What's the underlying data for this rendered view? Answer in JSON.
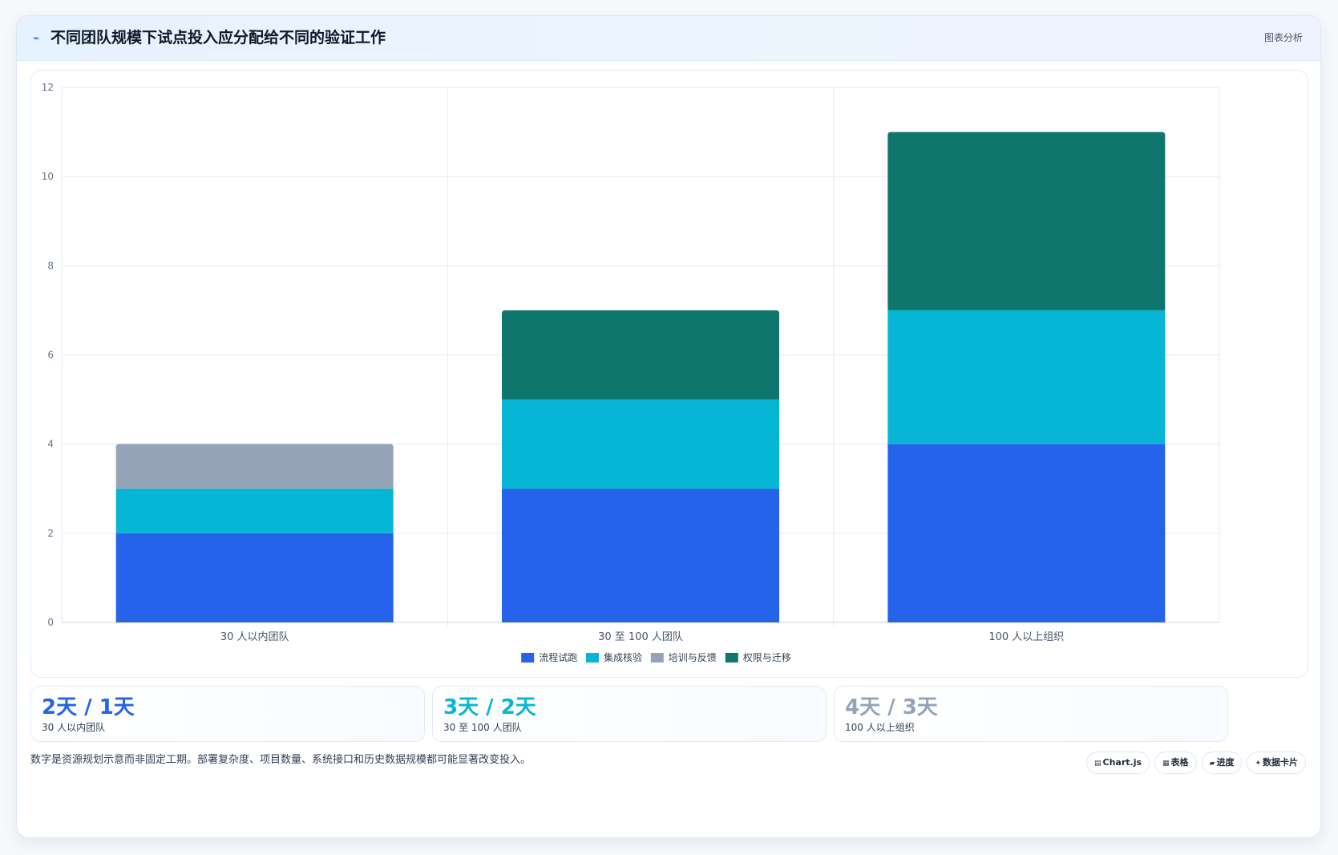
{
  "header": {
    "icon": "trend-line-icon",
    "title": "不同团队规模下试点投入应分配给不同的验证工作",
    "tag": "图表分析"
  },
  "chart_data": {
    "type": "bar",
    "stacked": true,
    "title": "",
    "xlabel": "",
    "ylabel": "",
    "categories": [
      "30 人以内团队",
      "30 至 100 人团队",
      "100 人以上组织"
    ],
    "series": [
      {
        "name": "流程试跑",
        "color": "#2563eb",
        "values": [
          2,
          3,
          4
        ]
      },
      {
        "name": "集成核验",
        "color": "#06b6d4",
        "values": [
          1,
          2,
          3
        ]
      },
      {
        "name": "培训与反馈",
        "color": "#94a3b8",
        "values": [
          1,
          0,
          0
        ]
      },
      {
        "name": "权限与迁移",
        "color": "#0f766e",
        "values": [
          0,
          2,
          4
        ]
      }
    ],
    "ylim": [
      0,
      12
    ],
    "yticks": [
      0,
      2,
      4,
      6,
      8,
      10,
      12
    ],
    "grid": true,
    "legend": "bottom"
  },
  "stats": [
    {
      "value": "2天 / 1天",
      "label": "30 人以内团队",
      "color": "#2563eb"
    },
    {
      "value": "3天 / 2天",
      "label": "30 至 100 人团队",
      "color": "#06b6d4"
    },
    {
      "value": "4天 / 3天",
      "label": "100 人以上组织",
      "color": "#94a3b8"
    }
  ],
  "footnote": "数字是资源规划示意而非固定工期。部署复杂度、项目数量、系统接口和历史数据规模都可能显著改变投入。",
  "pills": [
    {
      "icon": "chart-icon",
      "glyph": "▤",
      "label": "Chart.js"
    },
    {
      "icon": "table-icon",
      "glyph": "▦",
      "label": "表格"
    },
    {
      "icon": "progress-icon",
      "glyph": "▰",
      "label": "进度"
    },
    {
      "icon": "sparkle-icon",
      "glyph": "✦",
      "label": "数据卡片"
    }
  ]
}
